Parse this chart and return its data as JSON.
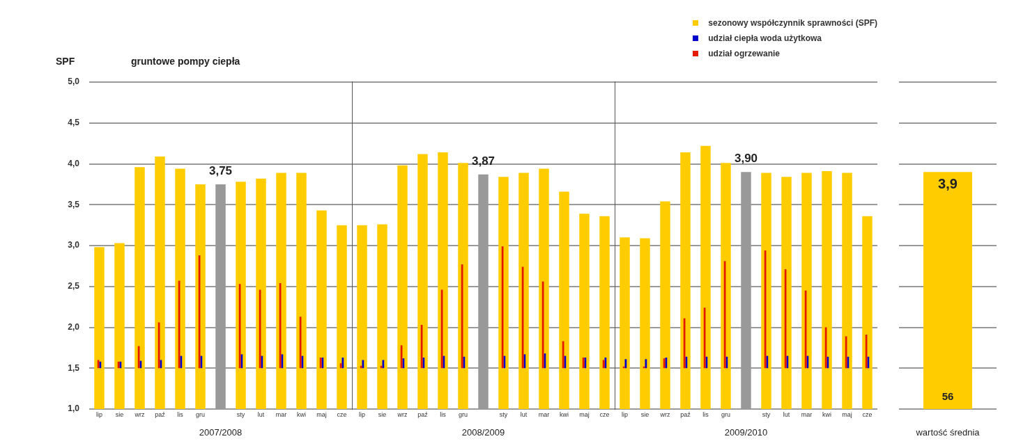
{
  "chart_data": [
    {
      "type": "bar",
      "title": "gruntowe pompy ciepła",
      "ylabel": "SPF",
      "xlabel": "2007/2008",
      "categories": [
        "lip",
        "sie",
        "wrz",
        "paź",
        "lis",
        "gru",
        null,
        "sty",
        "lut",
        "mar",
        "kwi",
        "maj",
        "cze"
      ],
      "series": [
        {
          "color": "#ffcc00",
          "values": [
            2.98,
            3.03,
            3.96,
            4.09,
            3.94,
            3.75,
            null,
            3.78,
            3.82,
            3.89,
            3.89,
            3.43,
            3.25
          ]
        },
        {
          "color": "#0000cc",
          "base": [
            1.5,
            1.5,
            1.5,
            1.5,
            1.5,
            1.5,
            null,
            1.5,
            1.5,
            1.5,
            1.5,
            1.5,
            1.5
          ],
          "values": [
            0.08,
            0.08,
            0.09,
            0.1,
            0.15,
            0.15,
            null,
            0.17,
            0.15,
            0.17,
            0.15,
            0.13,
            0.13
          ]
        },
        {
          "color": "#e31a00",
          "base": [
            1.5,
            1.5,
            1.5,
            1.5,
            1.5,
            1.5,
            null,
            1.5,
            1.5,
            1.5,
            1.5,
            1.5,
            1.5
          ],
          "values": [
            0.1,
            0.08,
            0.27,
            0.56,
            1.07,
            1.38,
            null,
            1.03,
            0.96,
            1.04,
            0.63,
            0.13,
            0.06
          ]
        },
        {
          "color": "#999999",
          "values": [
            null,
            null,
            null,
            null,
            null,
            null,
            3.75,
            null,
            null,
            null,
            null,
            null,
            null
          ],
          "value_labels": [
            null,
            null,
            null,
            null,
            null,
            null,
            "3,75",
            null,
            null,
            null,
            null,
            null,
            null
          ]
        }
      ],
      "ylim": [
        1,
        5
      ],
      "yticks": [
        {
          "value": 1,
          "label": "1,0"
        },
        {
          "value": 1.5,
          "label": "1,5"
        },
        {
          "value": 2,
          "label": "2,0"
        },
        {
          "value": 2.5,
          "label": "2,5"
        },
        {
          "value": 3,
          "label": "3,0"
        },
        {
          "value": 3.5,
          "label": "3,5"
        },
        {
          "value": 4,
          "label": "4,0"
        },
        {
          "value": 4.5,
          "label": "4,5"
        },
        {
          "value": 5,
          "label": "5,0"
        }
      ],
      "grid": "y"
    },
    {
      "type": "bar",
      "xlabel": "2008/2009",
      "categories": [
        "lip",
        "sie",
        "wrz",
        "paź",
        "lis",
        "gru",
        null,
        "sty",
        "lut",
        "mar",
        "kwi",
        "maj",
        "cze"
      ],
      "series": [
        {
          "color": "#ffcc00",
          "values": [
            3.25,
            3.26,
            3.98,
            4.12,
            4.14,
            4.01,
            null,
            3.84,
            3.89,
            3.94,
            3.66,
            3.39,
            3.36
          ]
        },
        {
          "color": "#0000cc",
          "base": [
            1.5,
            1.5,
            1.5,
            1.5,
            1.5,
            1.5,
            null,
            1.5,
            1.5,
            1.5,
            1.5,
            1.5,
            1.5
          ],
          "values": [
            0.1,
            0.1,
            0.12,
            0.13,
            0.15,
            0.14,
            null,
            0.15,
            0.17,
            0.18,
            0.15,
            0.13,
            0.13
          ]
        },
        {
          "color": "#e31a00",
          "base": [
            1.5,
            1.5,
            1.5,
            1.5,
            1.5,
            1.5,
            null,
            1.5,
            1.5,
            1.5,
            1.5,
            1.5,
            1.5
          ],
          "values": [
            0.03,
            0.03,
            0.28,
            0.53,
            0.96,
            1.27,
            null,
            1.49,
            1.24,
            1.06,
            0.33,
            0.13,
            0.1
          ]
        },
        {
          "color": "#999999",
          "values": [
            null,
            null,
            null,
            null,
            null,
            null,
            3.87,
            null,
            null,
            null,
            null,
            null,
            null
          ],
          "value_labels": [
            null,
            null,
            null,
            null,
            null,
            null,
            "3,87",
            null,
            null,
            null,
            null,
            null,
            null
          ]
        }
      ],
      "ylim": [
        1,
        5
      ],
      "yticks": [
        1,
        1.5,
        2,
        2.5,
        3,
        3.5,
        4,
        4.5,
        5
      ],
      "grid": "y",
      "tick_labels": "x"
    },
    {
      "type": "bar",
      "xlabel": "2009/2010",
      "categories": [
        "lip",
        "sie",
        "wrz",
        "paź",
        "lis",
        "gru",
        null,
        "sty",
        "lut",
        "mar",
        "kwi",
        "maj",
        "cze"
      ],
      "series": [
        {
          "name": "sezonowy współczynnik sprawności (SPF)",
          "color": "#ffcc00",
          "values": [
            3.1,
            3.09,
            3.54,
            4.14,
            4.22,
            4.01,
            null,
            3.89,
            3.84,
            3.89,
            3.91,
            3.89,
            3.36
          ]
        },
        {
          "name": "udział ciepła woda użytkowa",
          "color": "#0000cc",
          "base": [
            1.5,
            1.5,
            1.5,
            1.5,
            1.5,
            1.5,
            null,
            1.5,
            1.5,
            1.5,
            1.5,
            1.5,
            1.5
          ],
          "values": [
            0.11,
            0.11,
            0.13,
            0.14,
            0.14,
            0.14,
            null,
            0.15,
            0.15,
            0.15,
            0.14,
            0.14,
            0.14
          ]
        },
        {
          "name": "udział ogrzewanie",
          "color": "#e31a00",
          "base": [
            1.5,
            1.5,
            1.5,
            1.5,
            1.5,
            1.5,
            null,
            1.5,
            1.5,
            1.5,
            1.5,
            1.5,
            1.5
          ],
          "values": [
            0.02,
            0.02,
            0.12,
            0.61,
            0.74,
            1.31,
            null,
            1.44,
            1.21,
            0.95,
            0.5,
            0.39,
            0.41
          ]
        },
        {
          "color": "#999999",
          "values": [
            null,
            null,
            null,
            null,
            null,
            null,
            3.9,
            null,
            null,
            null,
            null,
            null,
            null
          ],
          "value_labels": [
            null,
            null,
            null,
            null,
            null,
            null,
            "3,90",
            null,
            null,
            null,
            null,
            null,
            null
          ]
        }
      ],
      "ylim": [
        1,
        5
      ],
      "yticks": [
        1,
        1.5,
        2,
        2.5,
        3,
        3.5,
        4,
        4.5,
        5
      ],
      "grid": "y",
      "tick_labels": "x",
      "legend": "top right"
    },
    {
      "type": "bar",
      "xlabel": "wartość średnia",
      "categories": [
        null
      ],
      "series": [
        {
          "color": "#ffcc00",
          "values": [
            3.9
          ],
          "value_labels": [
            "3,9"
          ]
        }
      ],
      "annotations": [
        "56"
      ],
      "ylim": [
        1,
        5
      ],
      "yticks": [
        1,
        1.5,
        2,
        2.5,
        3,
        3.5,
        4,
        4.5,
        5
      ],
      "grid": "y",
      "tick_labels": false
    }
  ]
}
